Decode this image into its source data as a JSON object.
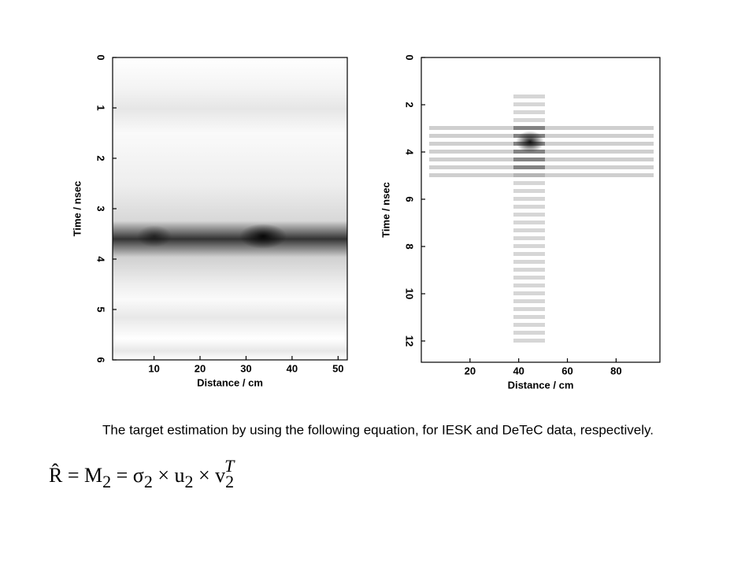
{
  "chart_data": [
    {
      "type": "heatmap",
      "xlabel": "Distance / cm",
      "ylabel": "Time / nsec",
      "xlim": [
        1,
        52
      ],
      "xticks": [
        10,
        20,
        30,
        40,
        50
      ],
      "ylim": [
        0,
        6
      ],
      "yticks": [
        0,
        1,
        2,
        3,
        4,
        5,
        6
      ],
      "y_inverted": true
    },
    {
      "type": "heatmap",
      "xlabel": "Distance / cm",
      "ylabel": "Time / nsec",
      "xlim": [
        0,
        98
      ],
      "xticks": [
        20,
        40,
        60,
        80
      ],
      "ylim": [
        0,
        12.9
      ],
      "yticks": [
        0,
        2,
        4,
        6,
        8,
        10,
        12
      ],
      "y_inverted": true
    }
  ],
  "caption": "The target estimation by using the following equation, for IESK and DeTeC data, respectively.",
  "equation": [
    "R̂ = M",
    "2",
    " = σ",
    "2",
    " × u",
    "2",
    " × v",
    "2",
    "T"
  ]
}
